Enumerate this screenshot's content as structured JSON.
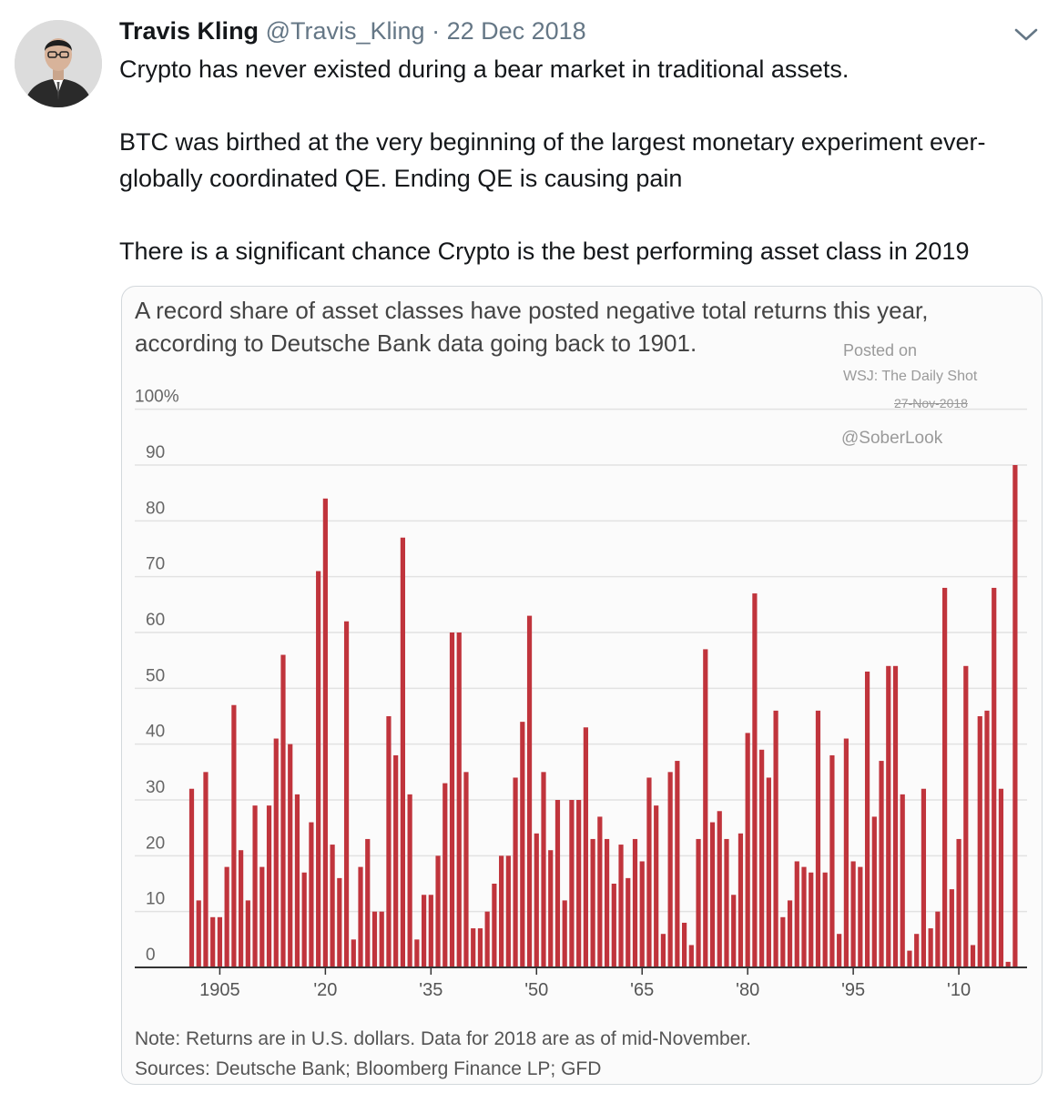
{
  "tweet": {
    "author_name": "Travis Kling",
    "handle": "@Travis_Kling",
    "separator": "·",
    "date": "22 Dec 2018",
    "paragraphs": [
      "Crypto has never existed during a bear market in traditional assets.",
      "BTC was birthed at the very beginning of the largest monetary experiment ever- globally coordinated QE. Ending QE is causing pain",
      "There is a significant chance Crypto is the best performing asset class in 2019"
    ],
    "menu_icon": "chevron-down-icon",
    "avatar_icon": "profile-photo"
  },
  "image": {
    "title_line1": "A record share of asset classes have posted negative total returns this year,",
    "title_line2": "according to Deutsche Bank data going back to 1901.",
    "stamp": {
      "posted_on": "Posted on",
      "publication": "WSJ: The Daily Shot",
      "date": "27-Nov-2018",
      "author": "@SoberLook"
    },
    "note": "Note: Returns are in U.S. dollars. Data for 2018 are as of mid-November.",
    "sources": "Sources: Deutsche Bank; Bloomberg Finance LP; GFD"
  },
  "chart_data": {
    "type": "bar",
    "title": "A record share of asset classes have posted negative total returns this year, according to Deutsche Bank data going back to 1901.",
    "xlabel": "",
    "ylabel": "",
    "x_start": 1901,
    "x_end": 2018,
    "ylim": [
      0,
      100
    ],
    "y_ticks": [
      "0",
      "10",
      "20",
      "30",
      "40",
      "50",
      "60",
      "70",
      "80",
      "90",
      "100%"
    ],
    "x_ticks": [
      {
        "year": 1905,
        "label": "1905"
      },
      {
        "year": 1920,
        "label": "'20"
      },
      {
        "year": 1935,
        "label": "'35"
      },
      {
        "year": 1950,
        "label": "'50"
      },
      {
        "year": 1965,
        "label": "'65"
      },
      {
        "year": 1980,
        "label": "'80"
      },
      {
        "year": 1995,
        "label": "'95"
      },
      {
        "year": 2010,
        "label": "'10"
      }
    ],
    "grid": true,
    "bar_color": "#c0343c",
    "values": [
      32,
      12,
      35,
      9,
      9,
      18,
      47,
      21,
      12,
      29,
      18,
      29,
      41,
      56,
      40,
      31,
      17,
      26,
      71,
      84,
      22,
      16,
      62,
      5,
      18,
      23,
      10,
      10,
      45,
      38,
      77,
      31,
      5,
      13,
      13,
      20,
      33,
      60,
      60,
      35,
      7,
      7,
      10,
      15,
      20,
      20,
      34,
      44,
      63,
      24,
      35,
      21,
      30,
      12,
      30,
      30,
      43,
      23,
      27,
      23,
      15,
      22,
      16,
      23,
      19,
      34,
      29,
      6,
      35,
      37,
      8,
      4,
      23,
      57,
      26,
      28,
      23,
      13,
      24,
      42,
      67,
      39,
      34,
      46,
      9,
      12,
      19,
      18,
      17,
      46,
      17,
      38,
      6,
      41,
      19,
      18,
      53,
      27,
      37,
      54,
      54,
      31,
      3,
      6,
      32,
      7,
      10,
      68,
      14,
      23,
      54,
      4,
      45,
      46,
      68,
      32,
      1,
      90
    ]
  }
}
